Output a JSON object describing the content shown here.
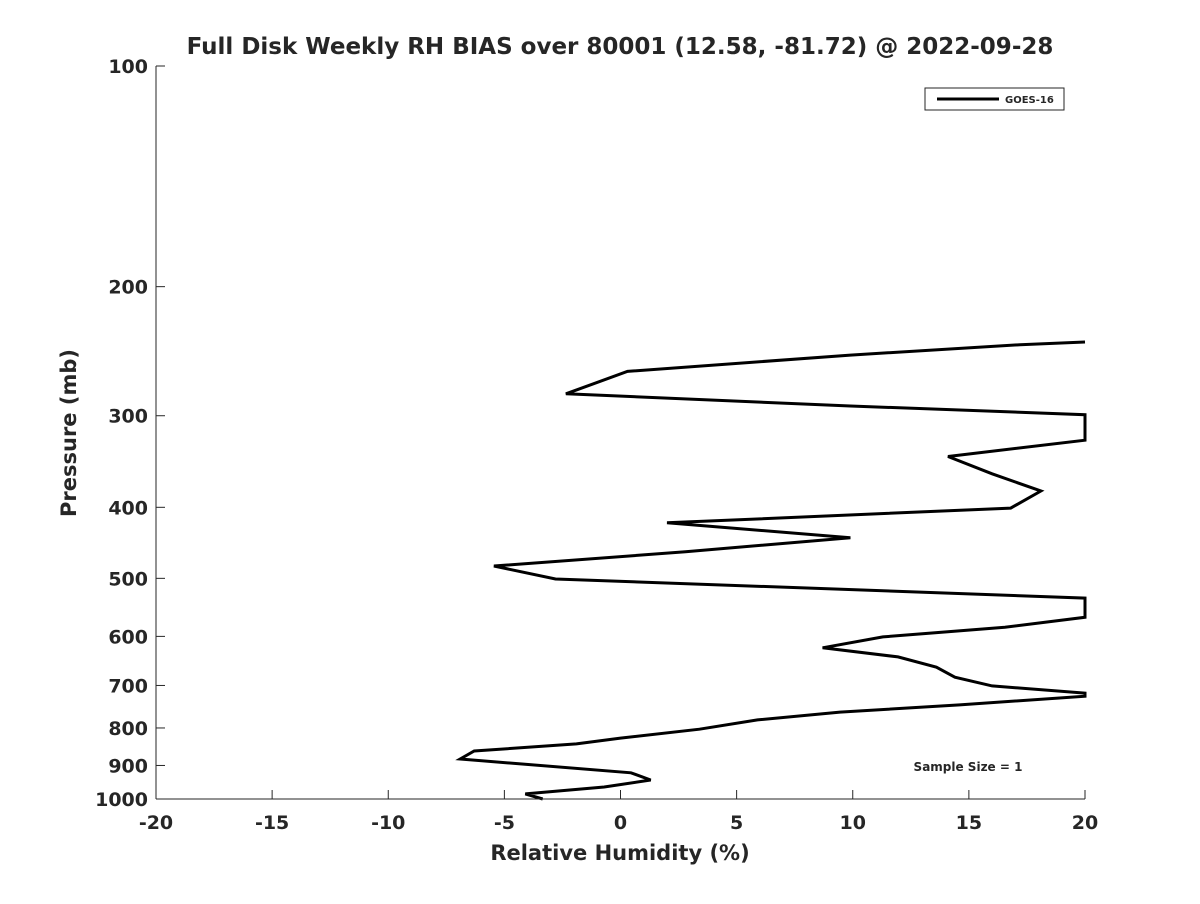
{
  "chart_data": {
    "type": "line",
    "title": "Full Disk Weekly RH BIAS over 80001 (12.58, -81.72) @ 2022-09-28",
    "xlabel": "Relative Humidity (%)",
    "ylabel": "Pressure (mb)",
    "xlim": [
      -20,
      20
    ],
    "ylim": [
      100,
      1000
    ],
    "yscale": "log",
    "yreversed": true,
    "xticks": [
      "-20",
      "-15",
      "-10",
      "-5",
      "0",
      "5",
      "10",
      "15",
      "20"
    ],
    "yticks": [
      "100",
      "200",
      "300",
      "400",
      "500",
      "600",
      "700",
      "800",
      "900",
      "1000"
    ],
    "grid": false,
    "legend": {
      "placement": "top-right",
      "entries": [
        "GOES-16"
      ]
    },
    "annotation": "Sample Size = 1",
    "series": [
      {
        "name": "GOES-16",
        "color": "#000000",
        "points": [
          [
            20,
            238
          ],
          [
            17.2,
            240
          ],
          [
            9.9,
            248
          ],
          [
            0.3,
            261
          ],
          [
            -2.35,
            280
          ],
          [
            9.9,
            291
          ],
          [
            20,
            299
          ],
          [
            20,
            324
          ],
          [
            14.1,
            341
          ],
          [
            16.0,
            360
          ],
          [
            18.1,
            380
          ],
          [
            16.8,
            401
          ],
          [
            2.0,
            420
          ],
          [
            9.9,
            440
          ],
          [
            2.8,
            460
          ],
          [
            -5.45,
            481
          ],
          [
            -2.8,
            501
          ],
          [
            12.9,
            522
          ],
          [
            20,
            532
          ],
          [
            20,
            565
          ],
          [
            16.55,
            583
          ],
          [
            11.3,
            601
          ],
          [
            8.7,
            622
          ],
          [
            11.95,
            640
          ],
          [
            13.6,
            661
          ],
          [
            14.4,
            682
          ],
          [
            16.0,
            701
          ],
          [
            20,
            717
          ],
          [
            20,
            724
          ],
          [
            14.6,
            744
          ],
          [
            9.45,
            761
          ],
          [
            5.9,
            780
          ],
          [
            3.4,
            803
          ],
          [
            0.0,
            826
          ],
          [
            -1.9,
            841
          ],
          [
            -6.3,
            860
          ],
          [
            -6.9,
            882
          ],
          [
            0.45,
            921
          ],
          [
            1.3,
            942
          ],
          [
            -0.7,
            963
          ],
          [
            -4.1,
            984
          ],
          [
            -3.35,
            1000
          ]
        ]
      }
    ]
  }
}
